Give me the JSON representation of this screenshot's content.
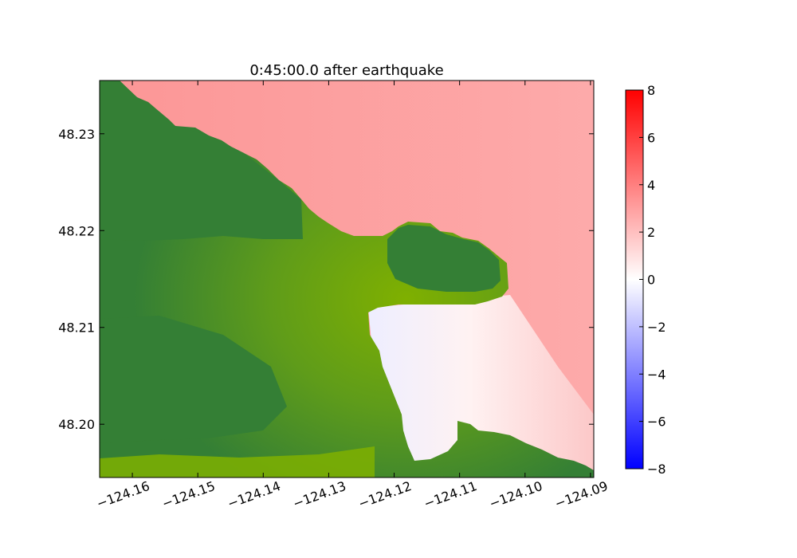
{
  "chart_data": {
    "type": "heatmap",
    "title": "0:45:00.0 after earthquake",
    "xlabel": "",
    "ylabel": "",
    "xlim": [
      -124.165,
      -124.0895
    ],
    "ylim": [
      48.1945,
      48.2355
    ],
    "x_ticks": [
      -124.16,
      -124.15,
      -124.14,
      -124.13,
      -124.12,
      -124.11,
      -124.1,
      -124.09
    ],
    "x_tick_labels": [
      "−124.16",
      "−124.15",
      "−124.14",
      "−124.13",
      "−124.12",
      "−124.11",
      "−124.10",
      "−124.09"
    ],
    "y_ticks": [
      48.2,
      48.21,
      48.22,
      48.23
    ],
    "y_tick_labels": [
      "48.20",
      "48.21",
      "48.22",
      "48.23"
    ],
    "colorbar": {
      "range": [
        -8,
        8
      ],
      "ticks": [
        -8,
        -6,
        -4,
        -2,
        0,
        2,
        4,
        6,
        8
      ],
      "tick_labels": [
        "−8",
        "−6",
        "−4",
        "−2",
        "0",
        "2",
        "4",
        "6",
        "8"
      ],
      "colors": {
        "low": "#0000ff",
        "mid": "#ffffff",
        "high": "#ff0000"
      }
    },
    "land_colors": {
      "high": "#347f35",
      "low": "#7fb000"
    },
    "water_surface_estimate": {
      "open_water": 1.5,
      "harbor_east": 0.7,
      "harbor_west": -0.3
    },
    "grid": false
  }
}
